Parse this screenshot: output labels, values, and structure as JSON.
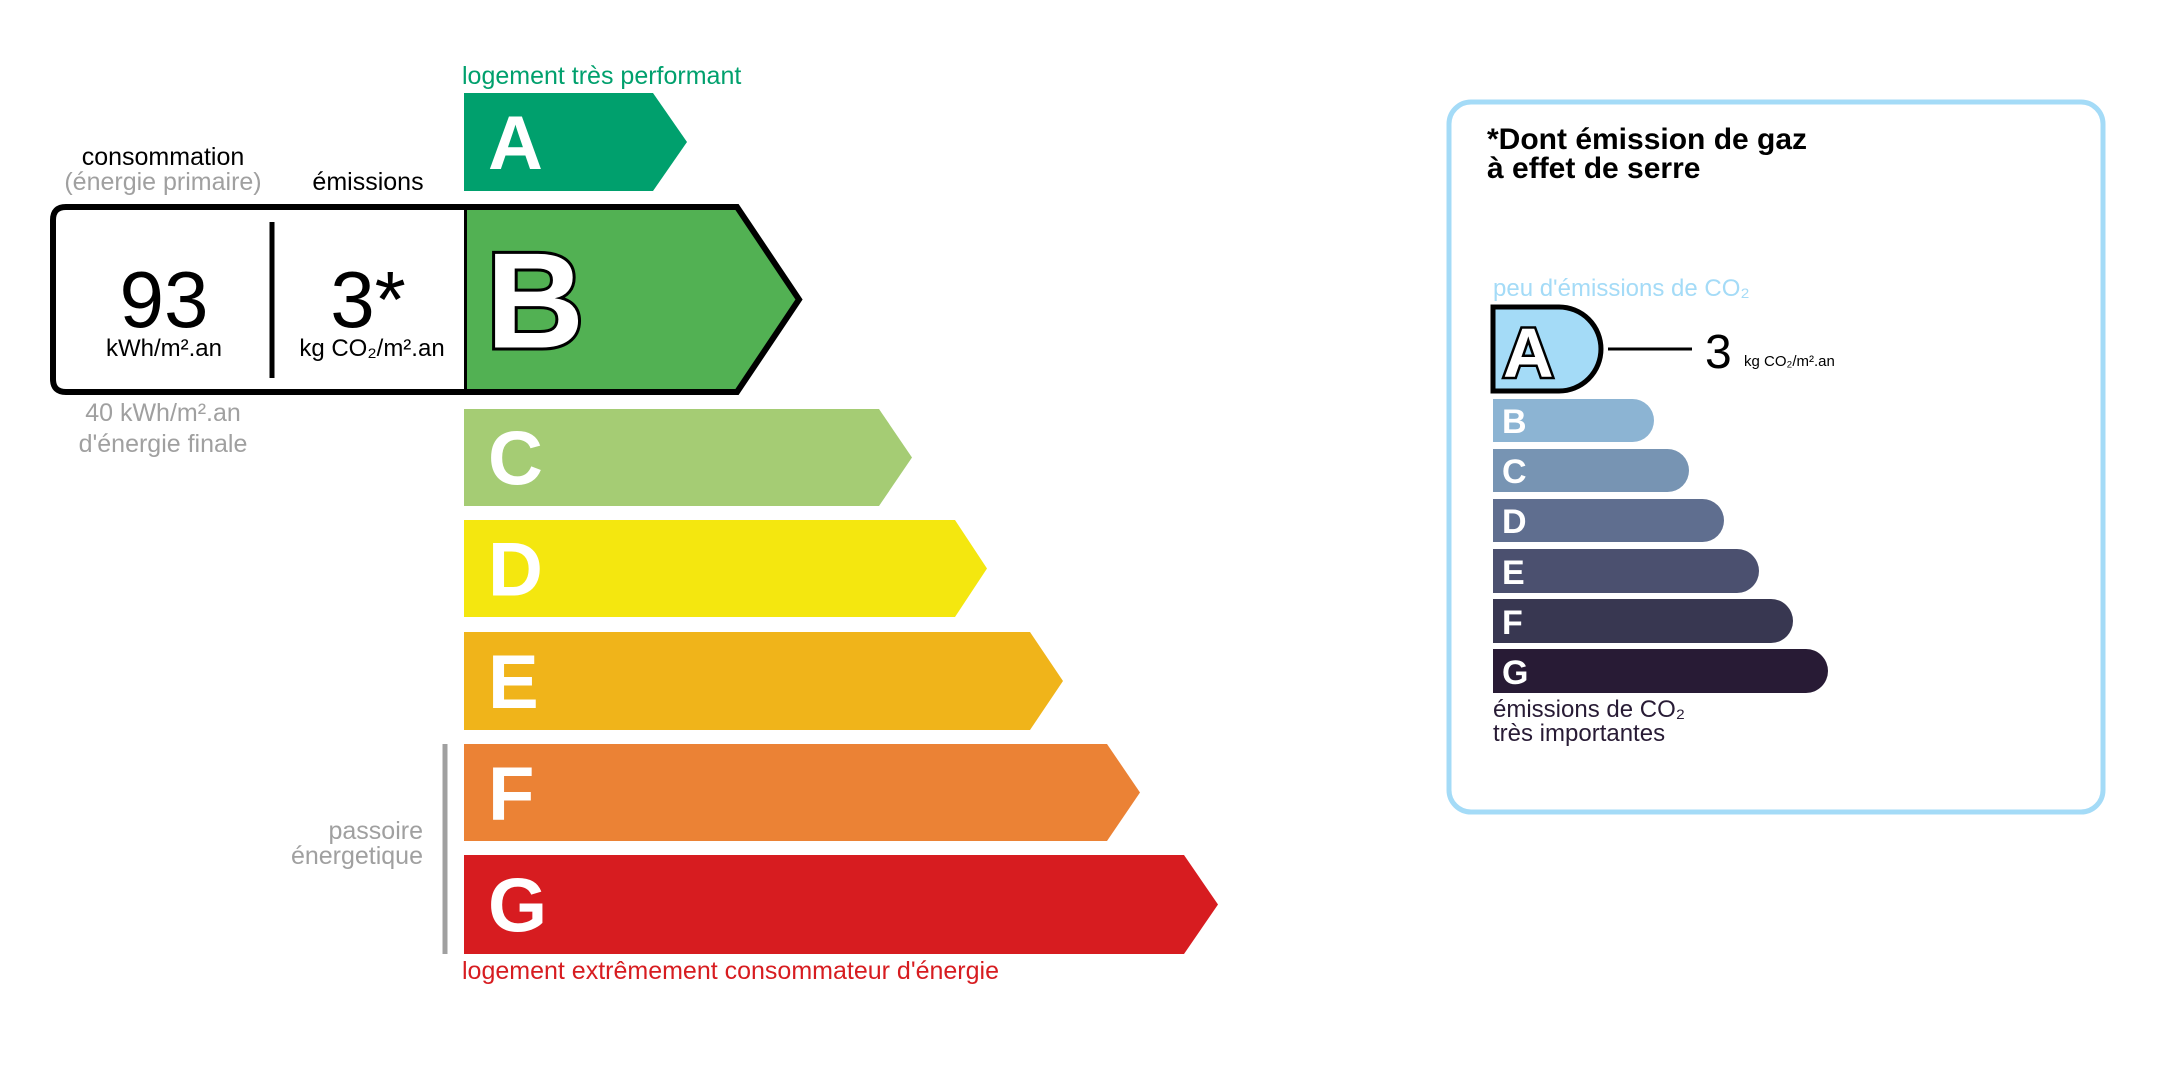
{
  "energy": {
    "top_label": "logement très performant",
    "bottom_label": "logement extrêmement consommateur d'énergie",
    "top_label_color": "#00a06d",
    "bottom_label_color": "#d71c20",
    "current_class": "B",
    "classes": [
      {
        "letter": "A",
        "color": "#00a06d"
      },
      {
        "letter": "B",
        "color": "#52b153"
      },
      {
        "letter": "C",
        "color": "#a5cc74"
      },
      {
        "letter": "D",
        "color": "#f4e70f"
      },
      {
        "letter": "E",
        "color": "#f0b41a"
      },
      {
        "letter": "F",
        "color": "#eb8235"
      },
      {
        "letter": "G",
        "color": "#d71c20"
      }
    ],
    "passoire_line1": "passoire",
    "passoire_line2": "énergetique"
  },
  "result_box": {
    "consumption_title": "consommation",
    "consumption_subtitle": "(énergie primaire)",
    "emissions_title": "émissions",
    "consumption_value": "93",
    "consumption_unit": "kWh/m².an",
    "emissions_value": "3*",
    "emissions_unit": "kg CO₂/m².an",
    "final_energy_line1": "40 kWh/m².an",
    "final_energy_line2": "d'énergie finale"
  },
  "ges": {
    "title_line1": "*Dont émission de gaz",
    "title_line2": "à effet de serre",
    "top_label": "peu d'émissions de CO₂",
    "bottom_label_line1": "émissions de CO₂",
    "bottom_label_line2": "très importantes",
    "current_class": "A",
    "value": "3",
    "unit": "kg CO₂/m².an",
    "border_color": "#a4dbf7",
    "classes": [
      {
        "letter": "A",
        "color": "#a4dbf7"
      },
      {
        "letter": "B",
        "color": "#8cb4d3"
      },
      {
        "letter": "C",
        "color": "#7794b3"
      },
      {
        "letter": "D",
        "color": "#5f6e8f"
      },
      {
        "letter": "E",
        "color": "#4b506f"
      },
      {
        "letter": "F",
        "color": "#383751"
      },
      {
        "letter": "G",
        "color": "#281b35"
      }
    ]
  }
}
